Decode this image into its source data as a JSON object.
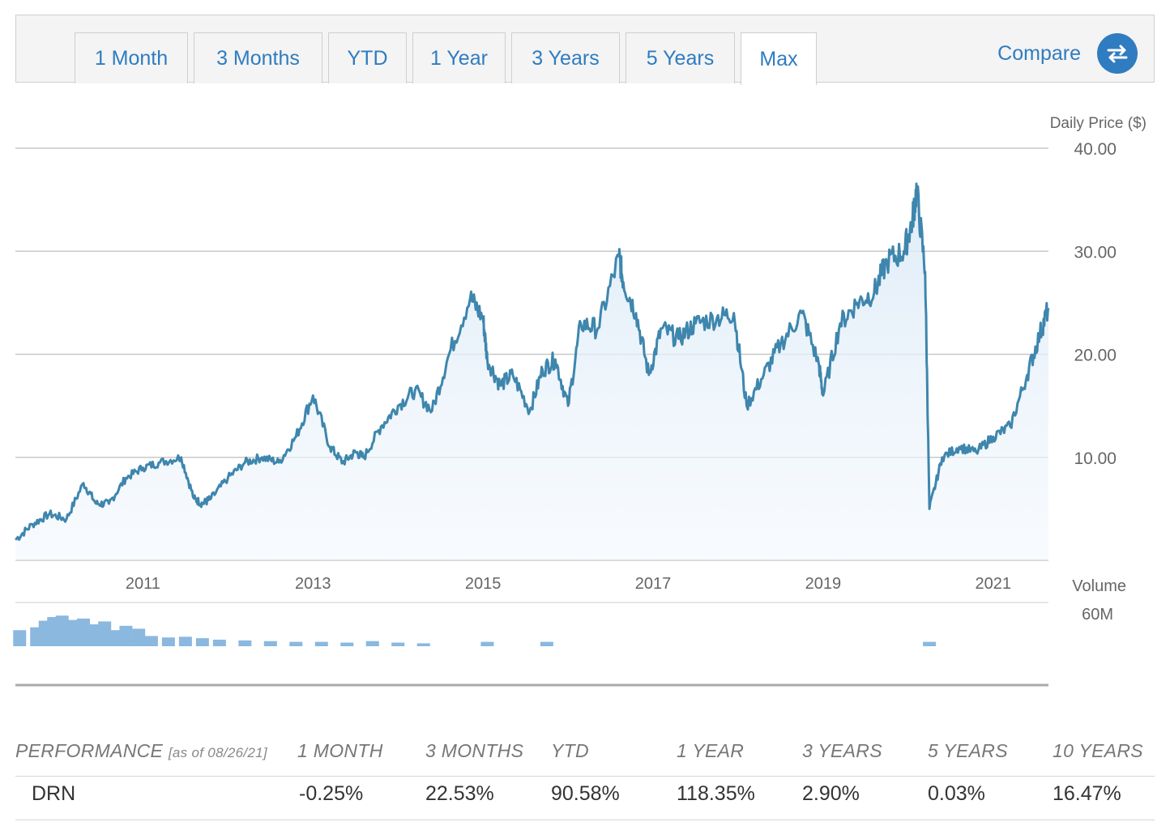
{
  "tabs": [
    {
      "label": "1 Month",
      "active": false
    },
    {
      "label": "3 Months",
      "active": false
    },
    {
      "label": "YTD",
      "active": false
    },
    {
      "label": "1 Year",
      "active": false
    },
    {
      "label": "3 Years",
      "active": false
    },
    {
      "label": "5 Years",
      "active": false
    },
    {
      "label": "Max",
      "active": true
    }
  ],
  "compare": {
    "label": "Compare",
    "icon": "swap-arrows-icon"
  },
  "colors": {
    "accent": "#2f7cc0",
    "line": "#3e86ad",
    "volume": "#8ab8df"
  },
  "chart_data": [
    {
      "type": "line",
      "ylabel": "Daily Price ($)",
      "ylim": [
        0,
        40
      ],
      "yticks": [
        "10.00",
        "20.00",
        "30.00",
        "40.00"
      ],
      "xlim": [
        2009.5,
        2021.65
      ],
      "xticks": [
        "2011",
        "2013",
        "2015",
        "2017",
        "2019",
        "2021"
      ],
      "grid": true,
      "area_fill": true,
      "series": [
        {
          "x": [
            2009.5,
            2009.7,
            2009.9,
            2010.1,
            2010.3,
            2010.45,
            2010.6,
            2010.8,
            2011.0,
            2011.2,
            2011.45,
            2011.6,
            2011.7,
            2011.8,
            2012.0,
            2012.2,
            2012.4,
            2012.6,
            2012.8,
            2013.0,
            2013.2,
            2013.35,
            2013.5,
            2013.6,
            2013.8,
            2014.0,
            2014.2,
            2014.4,
            2014.6,
            2014.85,
            2015.0,
            2015.05,
            2015.2,
            2015.35,
            2015.55,
            2015.7,
            2015.85,
            2016.0,
            2016.15,
            2016.35,
            2016.6,
            2016.65,
            2016.8,
            2016.95,
            2017.1,
            2017.3,
            2017.5,
            2017.75,
            2017.95,
            2018.1,
            2018.3,
            2018.5,
            2018.75,
            2018.95,
            2019.0,
            2019.2,
            2019.4,
            2019.6,
            2019.75,
            2019.95,
            2020.05,
            2020.1,
            2020.2,
            2020.25,
            2020.4,
            2020.6,
            2020.8,
            2021.0,
            2021.2,
            2021.4,
            2021.55,
            2021.65
          ],
          "values": [
            2.0,
            3.5,
            4.5,
            4.0,
            7.5,
            5.5,
            5.5,
            8.0,
            9.0,
            9.5,
            10.0,
            6.0,
            5.5,
            6.0,
            8.0,
            9.5,
            10.0,
            9.5,
            12.0,
            16.0,
            11.0,
            9.5,
            10.5,
            10.0,
            13.0,
            15.0,
            16.5,
            14.5,
            20.0,
            25.5,
            23.5,
            19.5,
            17.0,
            18.0,
            14.5,
            18.5,
            19.5,
            15.0,
            23.0,
            22.5,
            29.5,
            27.0,
            24.0,
            18.0,
            22.5,
            21.5,
            23.0,
            23.5,
            24.0,
            15.0,
            18.0,
            21.0,
            24.0,
            19.0,
            16.0,
            23.0,
            25.0,
            26.0,
            29.0,
            30.0,
            33.0,
            36.0,
            28.0,
            5.0,
            10.0,
            11.0,
            10.5,
            12.0,
            13.0,
            18.0,
            22.0,
            24.5
          ]
        }
      ]
    },
    {
      "type": "bar",
      "ylabel": "Volume",
      "ylim": [
        0,
        60000000
      ],
      "yticks": [
        "60M"
      ],
      "xlim": [
        2009.5,
        2021.65
      ],
      "x": [
        2009.55,
        2009.75,
        2009.85,
        2009.95,
        2010.05,
        2010.15,
        2010.3,
        2010.45,
        2010.55,
        2010.65,
        2010.8,
        2010.95,
        2011.1,
        2011.3,
        2011.5,
        2011.7,
        2011.9,
        2012.2,
        2012.5,
        2012.8,
        2013.1,
        2013.4,
        2013.7,
        2014.0,
        2014.3,
        2015.05,
        2015.75,
        2020.25
      ],
      "values": [
        22,
        26,
        35,
        40,
        42,
        36,
        38,
        30,
        34,
        22,
        28,
        24,
        14,
        12,
        13,
        11,
        9,
        8,
        7,
        6,
        6,
        5,
        7,
        5,
        4,
        6,
        6,
        6
      ],
      "unit_multiplier": 1000000
    }
  ],
  "performance": {
    "title": "PERFORMANCE",
    "as_of": "[as of 08/26/21]",
    "columns": [
      "1 MONTH",
      "3 MONTHS",
      "YTD",
      "1 YEAR",
      "3 YEARS",
      "5 YEARS",
      "10 YEARS"
    ],
    "rows": [
      {
        "ticker": "DRN",
        "values": [
          "-0.25%",
          "22.53%",
          "90.58%",
          "118.35%",
          "2.90%",
          "0.03%",
          "16.47%"
        ]
      }
    ]
  }
}
